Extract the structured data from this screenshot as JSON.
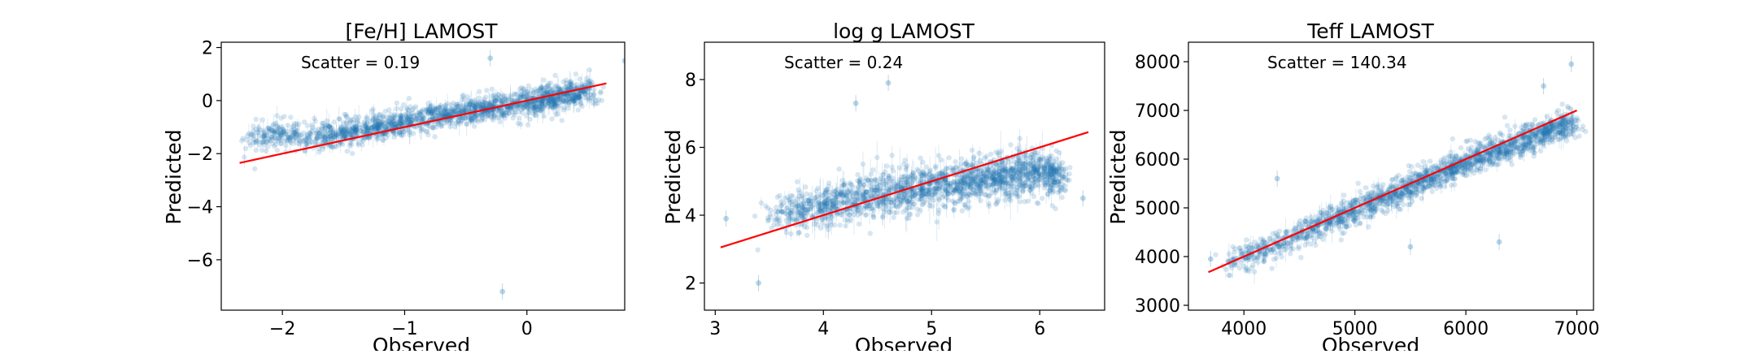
{
  "figure": {
    "panels": [
      {
        "title": "[Fe/H] LAMOST",
        "xlabel": "Observed",
        "ylabel": "Predicted",
        "annotation": "Scatter = 0.19"
      },
      {
        "title": "log g LAMOST",
        "xlabel": "Observed",
        "ylabel": "Predicted",
        "annotation": "Scatter = 0.24"
      },
      {
        "title": "Teff LAMOST",
        "xlabel": "Observed",
        "ylabel": "Predicted",
        "annotation": "Scatter = 140.34"
      }
    ]
  },
  "chart_data": [
    {
      "type": "scatter",
      "title": "[Fe/H] LAMOST",
      "xlabel": "Observed",
      "ylabel": "Predicted",
      "annotation": "Scatter = 0.19",
      "xlim": [
        -2.5,
        0.8
      ],
      "ylim": [
        -7.9,
        2.2
      ],
      "xticks": [
        -2,
        -1,
        0
      ],
      "yticks": [
        -6,
        -4,
        -2,
        0,
        2
      ],
      "grid": false,
      "point_color": "#1f77b4",
      "line_color": "#ff0000",
      "fit_line": {
        "x": [
          -2.35,
          0.65
        ],
        "y": [
          -2.35,
          0.65
        ]
      },
      "point_cloud": [
        [
          -2.3,
          -1.45
        ],
        [
          -2.0,
          -1.3
        ],
        [
          -1.7,
          -1.35
        ],
        [
          -1.5,
          -1.2
        ],
        [
          -1.3,
          -1.05
        ],
        [
          -1.0,
          -0.8
        ],
        [
          -0.7,
          -0.55
        ],
        [
          -0.4,
          -0.35
        ],
        [
          -0.2,
          -0.2
        ],
        [
          0.0,
          -0.05
        ],
        [
          0.2,
          0.1
        ],
        [
          0.35,
          0.2
        ],
        [
          0.5,
          0.3
        ]
      ],
      "outliers": [
        [
          -0.3,
          1.6
        ],
        [
          0.8,
          1.5
        ],
        [
          -0.2,
          -7.2
        ],
        [
          -1.9,
          -1.4
        ],
        [
          -2.2,
          -1.2
        ]
      ],
      "point_spread": 0.28
    },
    {
      "type": "scatter",
      "title": "log g LAMOST",
      "xlabel": "Observed",
      "ylabel": "Predicted",
      "annotation": "Scatter = 0.24",
      "xlim": [
        2.9,
        6.6
      ],
      "ylim": [
        1.2,
        9.1
      ],
      "xticks": [
        3,
        4,
        5,
        6
      ],
      "yticks": [
        2,
        4,
        6,
        8
      ],
      "grid": false,
      "point_color": "#1f77b4",
      "line_color": "#ff0000",
      "fit_line": {
        "x": [
          3.05,
          6.45
        ],
        "y": [
          3.05,
          6.45
        ]
      },
      "point_cloud": [
        [
          3.5,
          3.9
        ],
        [
          3.8,
          4.1
        ],
        [
          4.1,
          4.35
        ],
        [
          4.4,
          4.55
        ],
        [
          4.7,
          4.7
        ],
        [
          5.0,
          4.85
        ],
        [
          5.3,
          5.0
        ],
        [
          5.6,
          5.15
        ],
        [
          5.9,
          5.3
        ],
        [
          6.2,
          5.2
        ]
      ],
      "outliers": [
        [
          4.3,
          7.3
        ],
        [
          4.6,
          7.9
        ],
        [
          3.4,
          2.0
        ],
        [
          3.1,
          3.9
        ],
        [
          6.4,
          4.5
        ]
      ],
      "point_spread": 0.35
    },
    {
      "type": "scatter",
      "title": "Teff LAMOST",
      "xlabel": "Observed",
      "ylabel": "Predicted",
      "annotation": "Scatter = 140.34",
      "xlim": [
        3500,
        7150
      ],
      "ylim": [
        2900,
        8400
      ],
      "xticks": [
        4000,
        5000,
        6000,
        7000
      ],
      "yticks": [
        3000,
        4000,
        5000,
        6000,
        7000,
        8000
      ],
      "grid": false,
      "point_color": "#1f77b4",
      "line_color": "#ff0000",
      "fit_line": {
        "x": [
          3680,
          7000
        ],
        "y": [
          3680,
          7000
        ]
      },
      "point_cloud": [
        [
          3850,
          3900
        ],
        [
          4200,
          4150
        ],
        [
          4600,
          4550
        ],
        [
          5000,
          4950
        ],
        [
          5400,
          5350
        ],
        [
          5800,
          5750
        ],
        [
          6200,
          6100
        ],
        [
          6600,
          6450
        ],
        [
          6950,
          6750
        ]
      ],
      "outliers": [
        [
          6950,
          7950
        ],
        [
          6700,
          7500
        ],
        [
          4300,
          5600
        ],
        [
          5500,
          4200
        ],
        [
          6300,
          4300
        ],
        [
          3700,
          3950
        ]
      ],
      "point_spread": 160
    }
  ]
}
